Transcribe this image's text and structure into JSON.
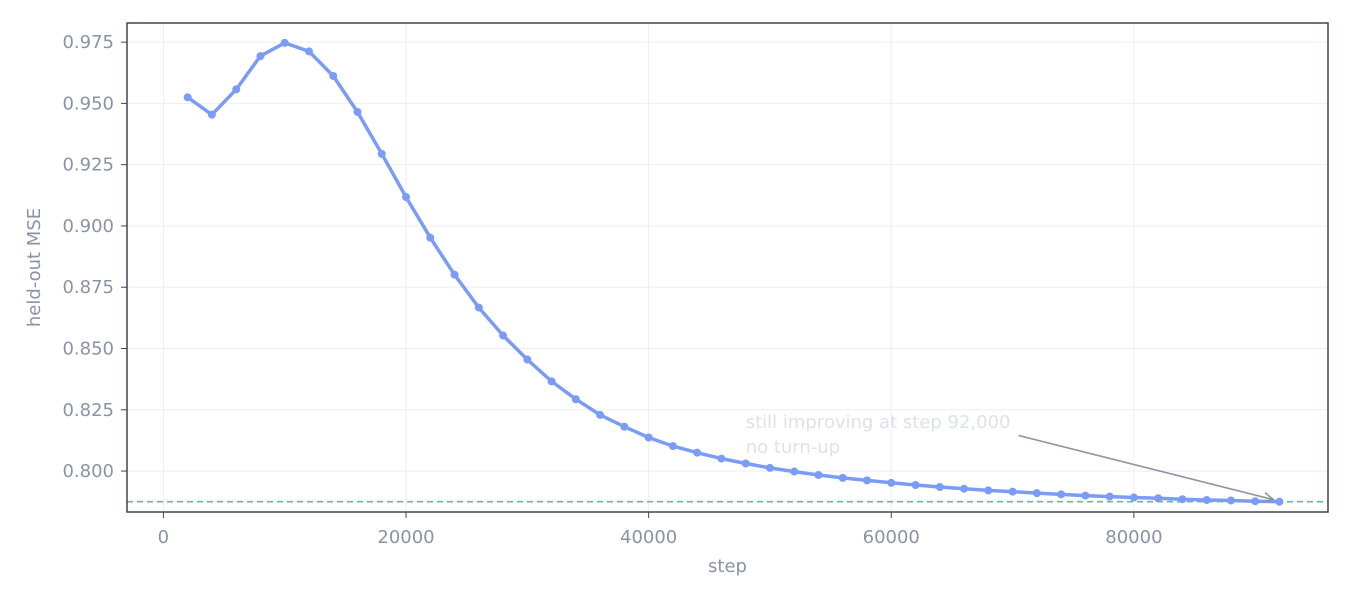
{
  "chart_data": {
    "type": "line",
    "title": "",
    "xlabel": "step",
    "ylabel": "held-out MSE",
    "xlim": [
      -3000,
      96000
    ],
    "ylim": [
      0.7833,
      0.9828
    ],
    "grid": true,
    "x_ticks": [
      0,
      20000,
      40000,
      60000,
      80000
    ],
    "x_tick_labels": [
      "0",
      "20000",
      "40000",
      "60000",
      "80000"
    ],
    "y_ticks": [
      0.8,
      0.825,
      0.85,
      0.875,
      0.9,
      0.925,
      0.95,
      0.975
    ],
    "y_tick_labels": [
      "0.800",
      "0.825",
      "0.850",
      "0.875",
      "0.900",
      "0.925",
      "0.950",
      "0.975"
    ],
    "series": [
      {
        "color": "#7b9cf5",
        "x": [
          2000,
          4000,
          6000,
          8000,
          10000,
          12000,
          14000,
          16000,
          18000,
          20000,
          22000,
          24000,
          26000,
          28000,
          30000,
          32000,
          34000,
          36000,
          38000,
          40000,
          42000,
          44000,
          46000,
          48000,
          50000,
          52000,
          54000,
          56000,
          58000,
          60000,
          62000,
          64000,
          66000,
          68000,
          70000,
          72000,
          74000,
          76000,
          78000,
          80000,
          82000,
          84000,
          86000,
          88000,
          90000,
          92000
        ],
        "y": [
          0.9525,
          0.9454,
          0.9557,
          0.9693,
          0.9747,
          0.9712,
          0.9612,
          0.9465,
          0.9294,
          0.9118,
          0.8952,
          0.8801,
          0.8667,
          0.8553,
          0.8455,
          0.8366,
          0.8293,
          0.8229,
          0.8181,
          0.8137,
          0.8102,
          0.8075,
          0.8051,
          0.8031,
          0.8013,
          0.7998,
          0.7984,
          0.7972,
          0.7962,
          0.7952,
          0.7943,
          0.7935,
          0.7928,
          0.7921,
          0.7916,
          0.791,
          0.7905,
          0.79,
          0.7896,
          0.7892,
          0.7889,
          0.7885,
          0.7882,
          0.788,
          0.7877,
          0.7875
        ]
      }
    ],
    "reference_line": {
      "y": 0.7875,
      "color": "#5cbf9e",
      "style": "dashed"
    },
    "annotation": {
      "lines": [
        "still improving at step 92,000",
        "no turn-up"
      ],
      "text_at": [
        48000,
        0.8175
      ],
      "arrow_from": [
        70500,
        0.8145
      ],
      "arrow_to": [
        92000,
        0.7875
      ]
    }
  }
}
